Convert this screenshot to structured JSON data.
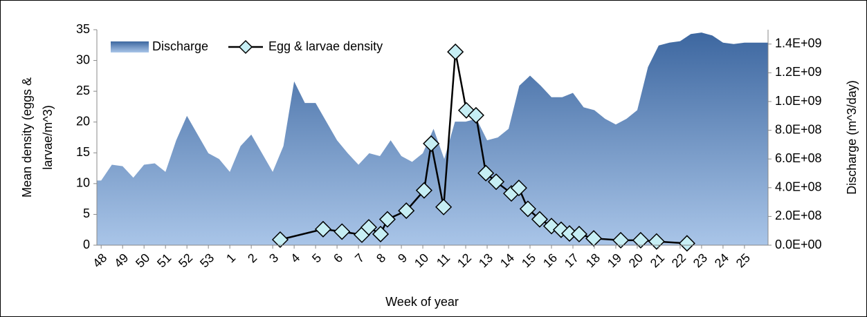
{
  "chart_data": {
    "type": "combo",
    "ylabel": [
      "Mean density (eggs &",
      "larvae/m^3)"
    ],
    "y2label": "Discharge (m^3/day)",
    "xlabel": "Week of year",
    "xlim": [
      47.8,
      79.1
    ],
    "xticks": [
      {
        "value": 48,
        "label": "48"
      },
      {
        "value": 49,
        "label": "49"
      },
      {
        "value": 50,
        "label": "50"
      },
      {
        "value": 51,
        "label": "51"
      },
      {
        "value": 52,
        "label": "52"
      },
      {
        "value": 53,
        "label": "53"
      },
      {
        "value": 54,
        "label": "1"
      },
      {
        "value": 55,
        "label": "2"
      },
      {
        "value": 56,
        "label": "3"
      },
      {
        "value": 57,
        "label": "4"
      },
      {
        "value": 58,
        "label": "5"
      },
      {
        "value": 59,
        "label": "6"
      },
      {
        "value": 60,
        "label": "7"
      },
      {
        "value": 61,
        "label": "8"
      },
      {
        "value": 62,
        "label": "9"
      },
      {
        "value": 63,
        "label": "10"
      },
      {
        "value": 64,
        "label": "11"
      },
      {
        "value": 65,
        "label": "12"
      },
      {
        "value": 66,
        "label": "13"
      },
      {
        "value": 67,
        "label": "14"
      },
      {
        "value": 68,
        "label": "15"
      },
      {
        "value": 69,
        "label": "16"
      },
      {
        "value": 70,
        "label": "17"
      },
      {
        "value": 71,
        "label": "18"
      },
      {
        "value": 72,
        "label": "19"
      },
      {
        "value": 73,
        "label": "20"
      },
      {
        "value": 74,
        "label": "21"
      },
      {
        "value": 75,
        "label": "22"
      },
      {
        "value": 76,
        "label": "23"
      },
      {
        "value": 77,
        "label": "24"
      },
      {
        "value": 78,
        "label": "25"
      }
    ],
    "ylim": [
      0,
      35
    ],
    "yticks": [
      0,
      5,
      10,
      15,
      20,
      25,
      30,
      35
    ],
    "y2lim": [
      0,
      1500000000
    ],
    "y2ticks": [
      {
        "value": 0,
        "label": "0.0E+00"
      },
      {
        "value": 200000000,
        "label": "2.0E+08"
      },
      {
        "value": 400000000,
        "label": "4.0E+08"
      },
      {
        "value": 600000000,
        "label": "6.0E+08"
      },
      {
        "value": 800000000,
        "label": "8.0E+08"
      },
      {
        "value": 1000000000,
        "label": "1.0E+09"
      },
      {
        "value": 1200000000,
        "label": "1.2E+09"
      },
      {
        "value": 1400000000,
        "label": "1.4E+09"
      }
    ],
    "legend": "top-left",
    "series": [
      {
        "name": "Discharge",
        "type": "area",
        "axis": "y2",
        "color": "#4a74aa",
        "x": [
          47.8,
          48,
          48.5,
          49,
          49.5,
          50,
          50.5,
          51,
          51.5,
          52,
          52.5,
          53,
          53.5,
          54,
          54.5,
          55,
          55.5,
          56,
          56.5,
          57,
          57.5,
          58,
          58.5,
          59,
          59.5,
          60,
          60.5,
          61,
          61.5,
          62,
          62.5,
          63,
          63.5,
          64,
          64.5,
          65,
          65.5,
          66,
          66.5,
          67,
          67.5,
          68,
          68.5,
          69,
          69.5,
          70,
          70.5,
          71,
          71.5,
          72,
          72.5,
          73,
          73.5,
          74,
          74.5,
          75,
          75.5,
          76,
          76.5,
          77,
          77.5,
          78,
          78.5,
          79.1
        ],
        "values": [
          450000000,
          450000000,
          560000000,
          550000000,
          470000000,
          560000000,
          570000000,
          510000000,
          730000000,
          900000000,
          770000000,
          640000000,
          600000000,
          510000000,
          690000000,
          770000000,
          640000000,
          510000000,
          690000000,
          1140000000,
          990000000,
          990000000,
          860000000,
          730000000,
          640000000,
          560000000,
          640000000,
          620000000,
          730000000,
          620000000,
          580000000,
          640000000,
          810000000,
          600000000,
          860000000,
          860000000,
          880000000,
          730000000,
          750000000,
          810000000,
          1110000000,
          1180000000,
          1110000000,
          1030000000,
          1030000000,
          1060000000,
          960000000,
          940000000,
          880000000,
          840000000,
          880000000,
          940000000,
          1240000000,
          1390000000,
          1410000000,
          1420000000,
          1470000000,
          1480000000,
          1460000000,
          1410000000,
          1400000000,
          1410000000,
          1410000000,
          1410000000
        ]
      },
      {
        "name": "Egg & larvae density",
        "type": "line",
        "axis": "y",
        "color": "#000000",
        "marker_color": "#c6eef4",
        "x": [
          56.35,
          58.35,
          59.23,
          60.16,
          60.48,
          61.03,
          61.35,
          62.23,
          63.06,
          63.39,
          63.97,
          64.52,
          65.03,
          65.48,
          65.94,
          66.42,
          67.13,
          67.48,
          67.9,
          68.45,
          69.0,
          69.45,
          69.84,
          70.29,
          70.97,
          72.23,
          73.16,
          73.9,
          75.32
        ],
        "values": [
          0.9,
          2.6,
          2.2,
          1.7,
          2.9,
          1.8,
          4.2,
          5.6,
          8.9,
          16.5,
          6.2,
          31.4,
          21.9,
          21.1,
          11.7,
          10.3,
          8.4,
          9.3,
          5.9,
          4.2,
          3.1,
          2.5,
          1.9,
          1.8,
          1.1,
          0.8,
          0.8,
          0.6,
          0.3
        ]
      }
    ]
  }
}
